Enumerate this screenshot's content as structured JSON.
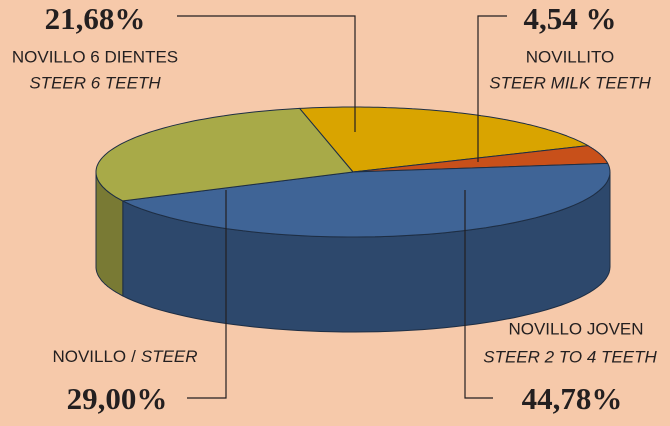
{
  "chart_data": {
    "type": "pie3d",
    "categories": [
      "NOVILLO 6 DIENTES",
      "NOVILLITO",
      "NOVILLO JOVEN",
      "NOVILLO"
    ],
    "categories_en": [
      "STEER 6 TEETH",
      "STEER MILK TEETH",
      "STEER 2 TO 4 TEETH",
      "STEER"
    ],
    "label_separator": "/",
    "values": [
      21.68,
      4.54,
      44.78,
      29.0
    ],
    "value_labels": [
      "21,68%",
      "4,54 %",
      "44,78%",
      "29,00%"
    ],
    "colors": [
      "#d9a400",
      "#c8501a",
      "#3f6496",
      "#a8aa48"
    ]
  }
}
